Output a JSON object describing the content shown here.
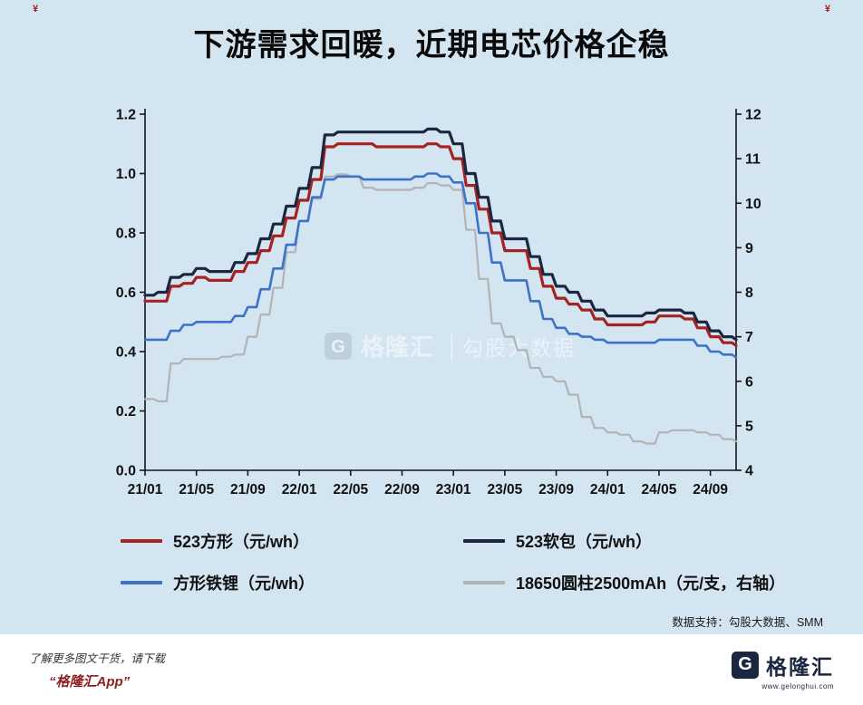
{
  "title": "下游需求回暖，近期电芯价格企稳",
  "decor": {
    "corner_left": "¥",
    "corner_right": "¥"
  },
  "chart_data": {
    "type": "line",
    "title": "下游需求回暖，近期电芯价格企稳",
    "xlabel": "",
    "ylabel": "",
    "grid": false,
    "legend_position": "bottom",
    "left_axis": {
      "min": 0.0,
      "max": 1.2,
      "tick_values": [
        1.2,
        1.0,
        0.8,
        0.6,
        0.4,
        0.2,
        0.0
      ],
      "tick_labels": [
        "1.2",
        "1.0",
        "0.8",
        "0.6",
        "0.4",
        "0.2",
        "0.0"
      ]
    },
    "right_axis": {
      "min": 4,
      "max": 12,
      "tick_values": [
        12,
        11,
        10,
        9,
        8,
        7,
        6,
        5,
        4
      ],
      "tick_labels": [
        "12",
        "11",
        "10",
        "9",
        "8",
        "7",
        "6",
        "5",
        "4"
      ]
    },
    "x_tick_positions": [
      0,
      4,
      8,
      12,
      16,
      20,
      24,
      28,
      32,
      36,
      40,
      44
    ],
    "x_tick_labels": [
      "21/01",
      "21/05",
      "21/09",
      "22/01",
      "22/05",
      "22/09",
      "23/01",
      "23/05",
      "23/09",
      "24/01",
      "24/05",
      "24/09"
    ],
    "series": [
      {
        "name": "523方形（元/wh）",
        "axis": "left",
        "color": "#a42320",
        "width": 3.2,
        "values": [
          0.57,
          0.57,
          0.62,
          0.63,
          0.65,
          0.64,
          0.64,
          0.67,
          0.7,
          0.74,
          0.79,
          0.85,
          0.91,
          0.98,
          1.09,
          1.1,
          1.1,
          1.1,
          1.09,
          1.09,
          1.09,
          1.09,
          1.1,
          1.09,
          1.05,
          0.96,
          0.88,
          0.8,
          0.74,
          0.74,
          0.68,
          0.62,
          0.58,
          0.56,
          0.54,
          0.51,
          0.49,
          0.49,
          0.49,
          0.5,
          0.52,
          0.52,
          0.51,
          0.48,
          0.45,
          0.43,
          0.42
        ]
      },
      {
        "name": "523软包（元/wh）",
        "axis": "left",
        "color": "#1b2740",
        "width": 3.2,
        "values": [
          0.59,
          0.6,
          0.65,
          0.66,
          0.68,
          0.67,
          0.67,
          0.7,
          0.73,
          0.78,
          0.83,
          0.89,
          0.95,
          1.02,
          1.13,
          1.14,
          1.14,
          1.14,
          1.14,
          1.14,
          1.14,
          1.14,
          1.15,
          1.14,
          1.1,
          1.0,
          0.92,
          0.84,
          0.78,
          0.78,
          0.72,
          0.66,
          0.62,
          0.6,
          0.57,
          0.54,
          0.52,
          0.52,
          0.52,
          0.53,
          0.54,
          0.54,
          0.53,
          0.5,
          0.47,
          0.45,
          0.44
        ]
      },
      {
        "name": "方形铁锂（元/wh）",
        "axis": "left",
        "color": "#3d72c8",
        "width": 2.6,
        "values": [
          0.44,
          0.44,
          0.47,
          0.49,
          0.5,
          0.5,
          0.5,
          0.52,
          0.55,
          0.61,
          0.68,
          0.76,
          0.84,
          0.92,
          0.98,
          0.99,
          0.99,
          0.98,
          0.98,
          0.98,
          0.98,
          0.99,
          1.0,
          0.99,
          0.97,
          0.9,
          0.8,
          0.7,
          0.64,
          0.64,
          0.57,
          0.51,
          0.48,
          0.46,
          0.45,
          0.44,
          0.43,
          0.43,
          0.43,
          0.43,
          0.44,
          0.44,
          0.44,
          0.42,
          0.4,
          0.39,
          0.38
        ]
      },
      {
        "name": "18650圆柱2500mAh（元/支，右轴）",
        "axis": "right",
        "color": "#b3b3b3",
        "width": 2.2,
        "values": [
          5.6,
          5.55,
          6.4,
          6.5,
          6.5,
          6.5,
          6.55,
          6.6,
          7.0,
          7.5,
          8.1,
          8.9,
          9.6,
          10.1,
          10.6,
          10.65,
          10.6,
          10.35,
          10.3,
          10.3,
          10.3,
          10.35,
          10.45,
          10.4,
          10.3,
          9.4,
          8.3,
          7.3,
          7.0,
          6.7,
          6.3,
          6.1,
          6.0,
          5.7,
          5.2,
          4.95,
          4.85,
          4.8,
          4.65,
          4.6,
          4.85,
          4.9,
          4.9,
          4.85,
          4.8,
          4.7,
          4.65
        ]
      }
    ]
  },
  "watermark": {
    "letter": "G",
    "brand": "格隆汇",
    "divider": "│",
    "label": "勾股大数据"
  },
  "source_note": "数据支持：勾股大数据、SMM",
  "footer": {
    "line1": "了解更多图文干货，请下载",
    "app_name": "“格隆汇App”",
    "logo": {
      "letter": "G",
      "brand": "格隆汇",
      "url": "www.gelonghui.com"
    }
  }
}
